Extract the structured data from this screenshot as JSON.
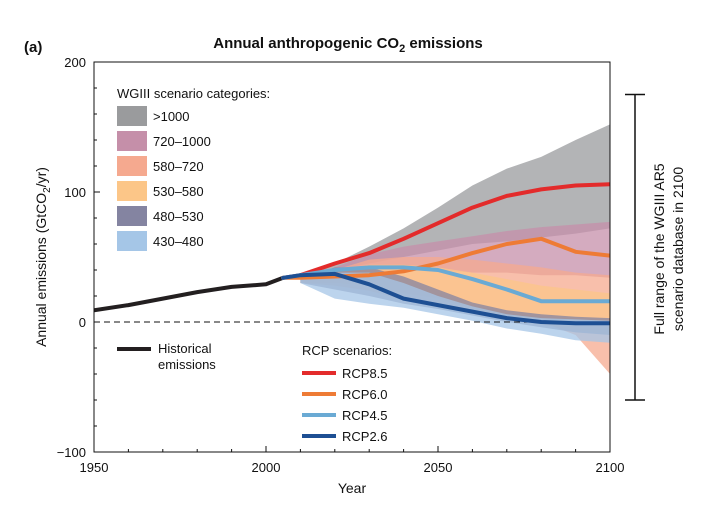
{
  "panel_label": "(a)",
  "chart_data": {
    "type": "line",
    "title": "Annual anthropogenic CO",
    "title_subscript": "2",
    "title_suffix": " emissions",
    "xlabel": "Year",
    "ylabel": "Annual emissions (GtCO",
    "ylabel_subscript": "2",
    "ylabel_suffix": "/yr)",
    "xlim": [
      1950,
      2100
    ],
    "ylim": [
      -100,
      200
    ],
    "x_ticks": [
      1950,
      2000,
      2050,
      2100
    ],
    "y_ticks": [
      -100,
      0,
      100,
      200
    ],
    "x_tick_labels": [
      "1950",
      "2000",
      "2050",
      "2100"
    ],
    "y_tick_labels": [
      "−100",
      "0",
      "100",
      "200"
    ],
    "zero_line": "dashed",
    "grid": false,
    "category_legend_title": "WGIII scenario categories:",
    "scenario_categories": [
      {
        "name": ">1000",
        "color": "#9a9b9d",
        "x": [
          2010,
          2020,
          2030,
          2040,
          2050,
          2060,
          2070,
          2080,
          2090,
          2100
        ],
        "upper": [
          33,
          45,
          58,
          72,
          88,
          105,
          118,
          127,
          140,
          152
        ],
        "lower": [
          33,
          40,
          45,
          50,
          55,
          60,
          62,
          65,
          68,
          72
        ]
      },
      {
        "name": "720–1000",
        "color": "#c58fa9",
        "x": [
          2010,
          2020,
          2030,
          2040,
          2050,
          2060,
          2070,
          2080,
          2090,
          2100
        ],
        "upper": [
          33,
          42,
          52,
          58,
          62,
          66,
          70,
          73,
          75,
          77
        ],
        "lower": [
          33,
          36,
          38,
          40,
          40,
          38,
          38,
          36,
          36,
          34
        ]
      },
      {
        "name": "580–720",
        "color": "#f5a98f",
        "x": [
          2010,
          2020,
          2030,
          2040,
          2050,
          2060,
          2070,
          2080,
          2090,
          2100
        ],
        "upper": [
          33,
          40,
          48,
          50,
          50,
          48,
          45,
          42,
          38,
          36
        ],
        "lower": [
          30,
          30,
          28,
          22,
          18,
          10,
          5,
          0,
          -10,
          -40
        ]
      },
      {
        "name": "530–580",
        "color": "#fcc688",
        "x": [
          2010,
          2020,
          2030,
          2040,
          2050,
          2060,
          2070,
          2080,
          2090,
          2100
        ],
        "upper": [
          33,
          40,
          44,
          44,
          42,
          38,
          33,
          28,
          25,
          22
        ],
        "lower": [
          30,
          28,
          24,
          17,
          12,
          8,
          3,
          -2,
          -6,
          -10
        ]
      },
      {
        "name": "480–530",
        "color": "#8484a1",
        "x": [
          2010,
          2020,
          2030,
          2040,
          2050,
          2060,
          2070,
          2080,
          2090,
          2100
        ],
        "upper": [
          33,
          42,
          42,
          35,
          25,
          15,
          9,
          6,
          4,
          3
        ],
        "lower": [
          30,
          25,
          20,
          14,
          10,
          5,
          0,
          -4,
          -8,
          -10
        ]
      },
      {
        "name": "430–480",
        "color": "#a5c6e7",
        "x": [
          2010,
          2020,
          2030,
          2040,
          2050,
          2060,
          2070,
          2080,
          2090,
          2100
        ],
        "upper": [
          33,
          38,
          38,
          30,
          20,
          12,
          6,
          3,
          2,
          1
        ],
        "lower": [
          30,
          18,
          14,
          11,
          6,
          1,
          -5,
          -9,
          -14,
          -16
        ]
      }
    ],
    "historical_label": "Historical\nemissions",
    "historical": {
      "name": "Historical emissions",
      "color": "#231f20",
      "x": [
        1950,
        1960,
        1970,
        1980,
        1990,
        2000,
        2005
      ],
      "values": [
        9,
        13,
        18,
        23,
        27,
        29,
        34
      ]
    },
    "rcp_legend_title": "RCP scenarios:",
    "series": [
      {
        "name": "RCP8.5",
        "color": "#e32b2b",
        "x": [
          2005,
          2010,
          2020,
          2030,
          2040,
          2050,
          2060,
          2070,
          2080,
          2090,
          2100
        ],
        "values": [
          34,
          36,
          45,
          53,
          64,
          76,
          88,
          97,
          102,
          105,
          106
        ]
      },
      {
        "name": "RCP6.0",
        "color": "#ee7b35",
        "x": [
          2005,
          2010,
          2020,
          2030,
          2040,
          2050,
          2060,
          2070,
          2080,
          2090,
          2100
        ],
        "values": [
          34,
          34,
          35,
          36,
          39,
          45,
          53,
          60,
          64,
          54,
          51
        ]
      },
      {
        "name": "RCP4.5",
        "color": "#6aaad4",
        "x": [
          2005,
          2010,
          2020,
          2030,
          2040,
          2050,
          2060,
          2070,
          2080,
          2090,
          2100
        ],
        "values": [
          34,
          36,
          40,
          42,
          42,
          40,
          33,
          25,
          16,
          16,
          16
        ]
      },
      {
        "name": "RCP2.6",
        "color": "#1d4f93",
        "x": [
          2005,
          2010,
          2020,
          2030,
          2040,
          2050,
          2060,
          2070,
          2080,
          2090,
          2100
        ],
        "values": [
          34,
          36,
          37,
          29,
          18,
          13,
          8,
          3,
          0,
          -1,
          -1
        ]
      }
    ],
    "range_bar": {
      "label_line1": "Full range of the WGIII AR5",
      "label_line2": "scenario database in 2100",
      "from": -60,
      "to": 175
    }
  }
}
